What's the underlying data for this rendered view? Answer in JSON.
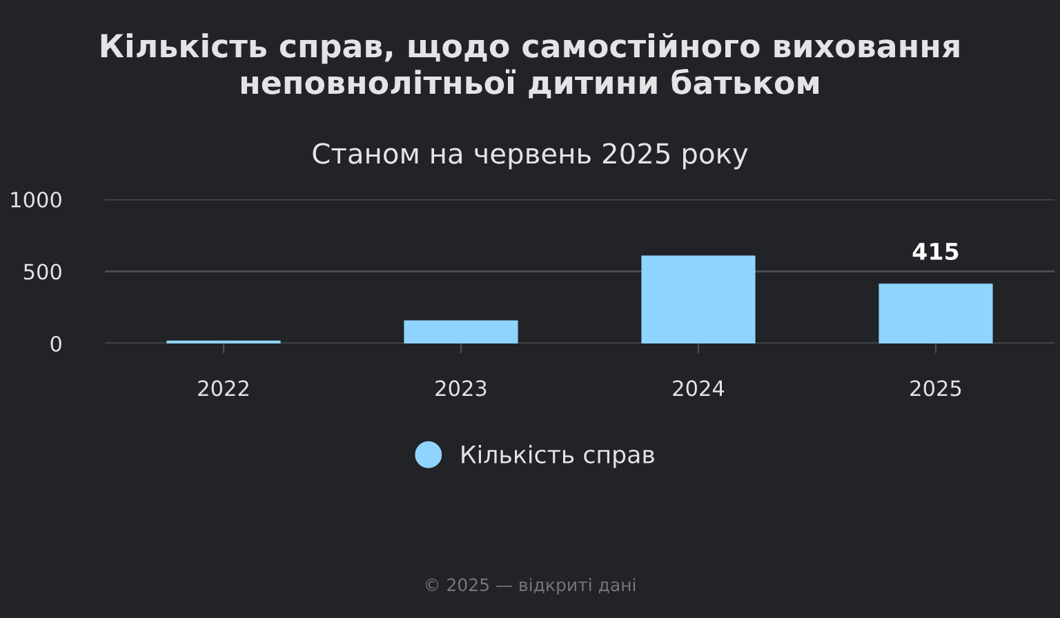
{
  "chart_data": {
    "type": "bar",
    "title": "Кількість справ, щодо самостійного виховання неповнолітньої дитини батьком",
    "subtitle": "Станом на червень 2025 року",
    "categories": [
      "2022",
      "2023",
      "2024",
      "2025"
    ],
    "series": [
      {
        "name": "Кількість справ",
        "color": "#8fd4ff",
        "values": [
          20,
          160,
          610,
          415
        ],
        "value_labels": [
          null,
          null,
          null,
          "415"
        ]
      }
    ],
    "ylim": [
      0,
      1000
    ],
    "yticks": [
      0,
      500,
      1000
    ],
    "grid": "y",
    "legend": "bottom",
    "annotations": [
      "© 2025 — відкриті дані"
    ]
  }
}
